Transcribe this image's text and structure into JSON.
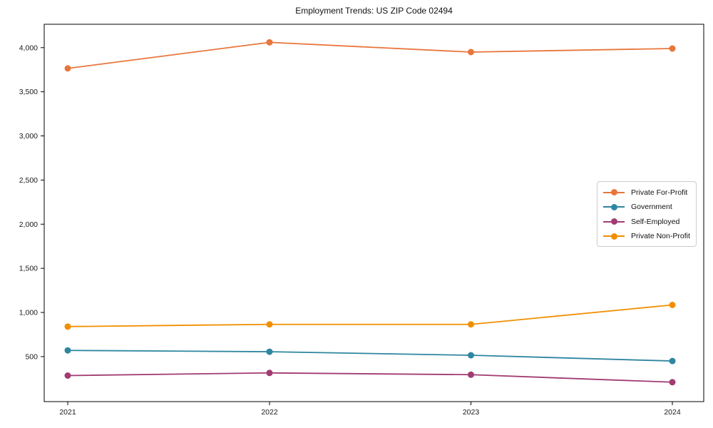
{
  "chart_data": {
    "type": "line",
    "title": "Employment Trends: US ZIP Code 02494",
    "categories": [
      "2021",
      "2022",
      "2023",
      "2024"
    ],
    "series": [
      {
        "name": "Private For-Profit",
        "color": "#E8763C",
        "values": [
          3765,
          4060,
          3950,
          3990
        ]
      },
      {
        "name": "Government",
        "color": "#2E86A0",
        "values": [
          570,
          555,
          515,
          450
        ]
      },
      {
        "name": "Self-Employed",
        "color": "#A23B72",
        "values": [
          285,
          315,
          295,
          210
        ]
      },
      {
        "name": "Private Non-Profit",
        "color": "#F18F01",
        "values": [
          840,
          865,
          865,
          1085
        ]
      }
    ],
    "xlabel": "",
    "ylabel": "",
    "ylim": [
      -10,
      4265
    ],
    "yticks": [
      500,
      1000,
      1500,
      2000,
      2500,
      3000,
      3500,
      4000
    ],
    "ytick_labels": [
      "500",
      "1,000",
      "1,500",
      "2,000",
      "2,500",
      "3,000",
      "3,500",
      "4,000"
    ],
    "grid": false,
    "legend_position": "center right",
    "axis_color": "#000000",
    "tick_label_color": "#1a1a1a"
  }
}
